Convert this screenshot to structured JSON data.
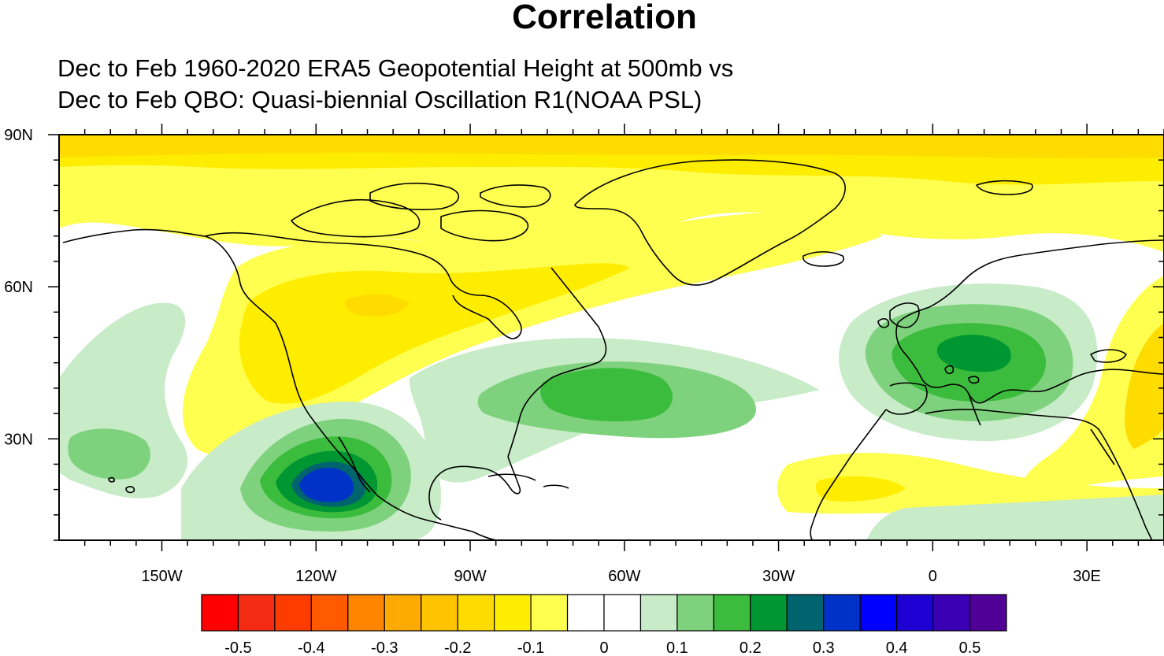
{
  "title": "Correlation",
  "subtitle_line1": "Dec to Feb 1960-2020 ERA5 Geopotential Height at 500mb vs",
  "subtitle_line2": "Dec to Feb QBO: Quasi-biennial Oscillation R1(NOAA PSL)",
  "map": {
    "lon_range": [
      -170,
      45
    ],
    "lat_range": [
      10,
      90
    ],
    "lon_tick_labels": [
      {
        "lon": -150,
        "label": "150W"
      },
      {
        "lon": -120,
        "label": "120W"
      },
      {
        "lon": -90,
        "label": "90W"
      },
      {
        "lon": -60,
        "label": "60W"
      },
      {
        "lon": -30,
        "label": "30W"
      },
      {
        "lon": 0,
        "label": "0"
      },
      {
        "lon": 30,
        "label": "30E"
      }
    ],
    "lat_tick_labels": [
      {
        "lat": 90,
        "label": "90N"
      },
      {
        "lat": 60,
        "label": "60N"
      },
      {
        "lat": 30,
        "label": "30N"
      }
    ],
    "background_color": "#ffffff"
  },
  "colorbar": {
    "colors": [
      "#ff0000",
      "#f42c14",
      "#ff3c00",
      "#ff5a00",
      "#ff8400",
      "#ffaa00",
      "#ffc300",
      "#ffdc00",
      "#ffed00",
      "#ffff50",
      "#ffffff",
      "#ffffff",
      "#c8ebc8",
      "#7ed27e",
      "#3cbc3c",
      "#009632",
      "#00646e",
      "#0032c8",
      "#0000ff",
      "#1e00d2",
      "#3c00b4",
      "#500096"
    ],
    "labels": [
      "-0.5",
      "-0.4",
      "-0.3",
      "-0.2",
      "-0.1",
      "0",
      "0.1",
      "0.2",
      "0.3",
      "0.4",
      "0.5"
    ]
  }
}
